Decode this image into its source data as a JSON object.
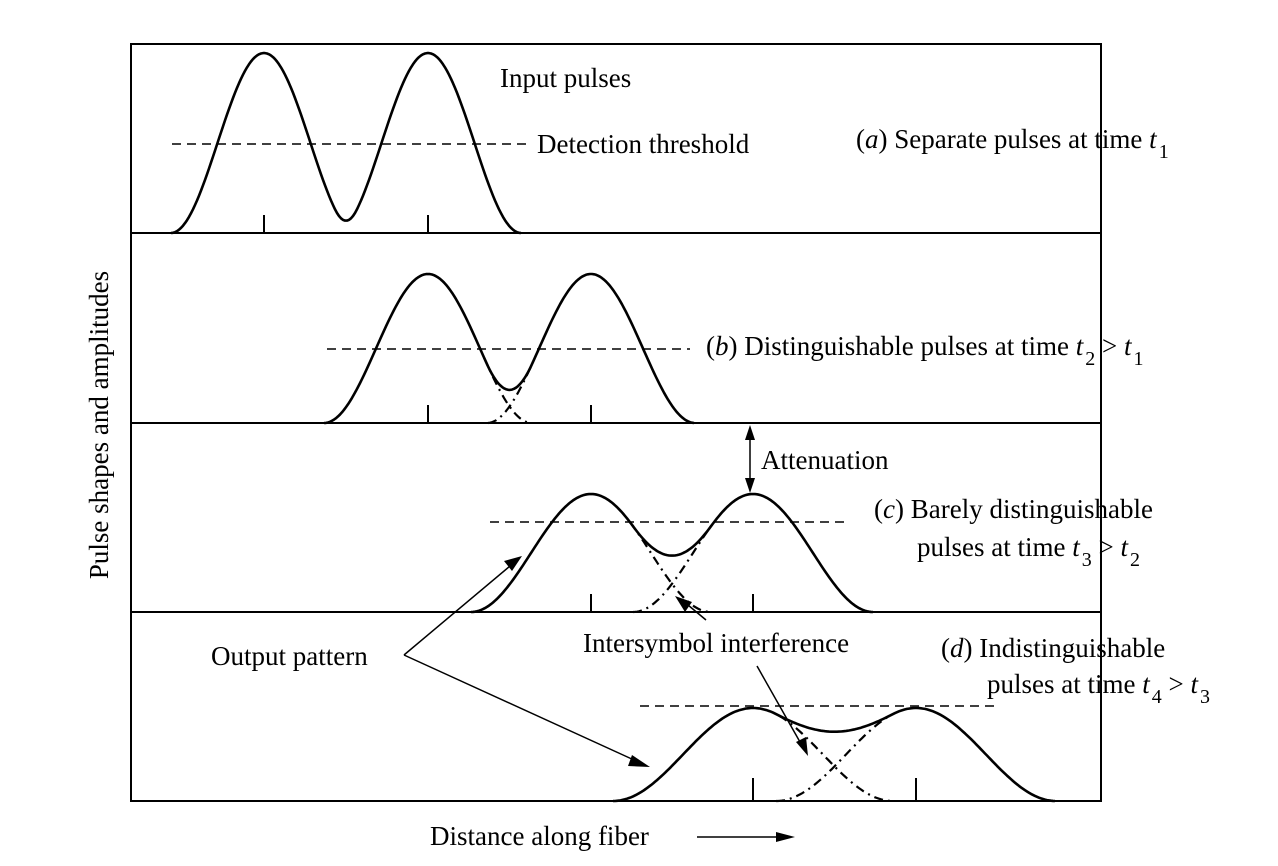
{
  "figure": {
    "y_axis_label": "Pulse shapes and amplitudes",
    "x_axis_label": "Distance along fiber"
  },
  "panels": [
    {
      "id": "a",
      "letter": "a",
      "caption_lines": [
        {
          "pre": ") Separate pulses at time ",
          "var": "t",
          "sub": "1",
          "post": ""
        }
      ],
      "extra_labels": {
        "input_pulses": "Input pulses",
        "detection_threshold": "Detection threshold"
      }
    },
    {
      "id": "b",
      "letter": "b",
      "caption_lines": [
        {
          "pre": ") Distinguishable pulses at time ",
          "var": "t",
          "sub": "2",
          "post": " > ",
          "var2": "t",
          "sub2": "1"
        }
      ]
    },
    {
      "id": "c",
      "letter": "c",
      "caption_lines": [
        {
          "pre": ") Barely distinguishable",
          "var": "",
          "sub": "",
          "post": ""
        },
        {
          "pre": "pulses at time ",
          "var": "t",
          "sub": "3",
          "post": " > ",
          "var2": "t",
          "sub2": "2"
        }
      ],
      "extra_labels": {
        "attenuation": "Attenuation"
      }
    },
    {
      "id": "d",
      "letter": "d",
      "caption_lines": [
        {
          "pre": ") Indistinguishable",
          "var": "",
          "sub": "",
          "post": ""
        },
        {
          "pre": "pulses at time ",
          "var": "t",
          "sub": "4",
          "post": " > ",
          "var2": "t",
          "sub2": "3"
        }
      ]
    }
  ],
  "annotations": {
    "output_pattern": "Output pattern",
    "intersymbol_interference": "Intersymbol interference"
  }
}
